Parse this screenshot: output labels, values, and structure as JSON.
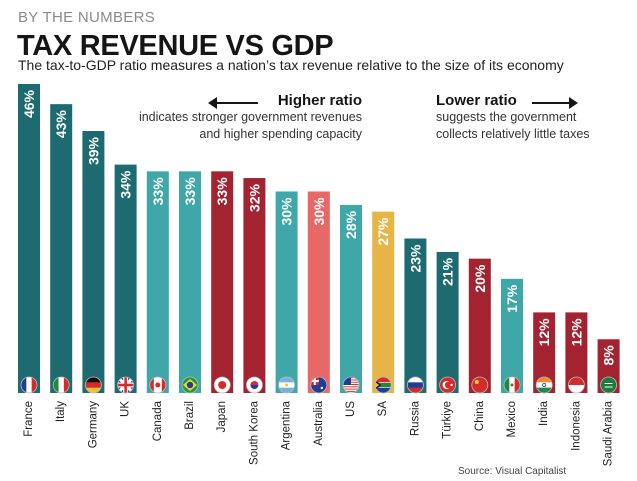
{
  "header": {
    "kicker": "BY THE NUMBERS",
    "title": "TAX REVENUE VS GDP",
    "subtitle": "The tax-to-GDP ratio measures a nation’s tax revenue relative to the size of its economy"
  },
  "notes": {
    "higher": {
      "head": "Higher ratio",
      "line1": "indicates stronger government revenues",
      "line2": "and higher spending capacity"
    },
    "lower": {
      "head": "Lower ratio",
      "line1": "suggests the government",
      "line2": "collects relatively little taxes"
    }
  },
  "source": "Source: Visual Capitalist",
  "colors": {
    "teal": "#1d6a70",
    "light_teal": "#3fa7a7",
    "red": "#a32430",
    "coral": "#e86767",
    "gold": "#e7b547"
  },
  "chart_data": {
    "type": "bar",
    "title": "TAX REVENUE VS GDP",
    "categories": [
      "France",
      "Italy",
      "Germany",
      "UK",
      "Canada",
      "Brazil",
      "Japan",
      "South Korea",
      "Argentina",
      "Australia",
      "US",
      "SA",
      "Russia",
      "Türkiye",
      "China",
      "Mexico",
      "India",
      "Indonesia",
      "Saudi Arabia"
    ],
    "values": [
      46,
      43,
      39,
      34,
      33,
      33,
      33,
      32,
      30,
      30,
      28,
      27,
      23,
      21,
      20,
      17,
      12,
      12,
      8
    ],
    "labels": [
      "46%",
      "43%",
      "39%",
      "34%",
      "33%",
      "33%",
      "33%",
      "32%",
      "30%",
      "30%",
      "28%",
      "27%",
      "23%",
      "21%",
      "20%",
      "17%",
      "12%",
      "12%",
      "8%"
    ],
    "bar_colors": [
      "#1d6a70",
      "#1d6a70",
      "#1d6a70",
      "#1d6a70",
      "#3fa7a7",
      "#3fa7a7",
      "#a32430",
      "#a32430",
      "#3fa7a7",
      "#e86767",
      "#3fa7a7",
      "#e7b547",
      "#1d6a70",
      "#1d6a70",
      "#a32430",
      "#3fa7a7",
      "#a32430",
      "#a32430",
      "#a32430"
    ],
    "flag_icons": [
      "france-flag-icon",
      "italy-flag-icon",
      "germany-flag-icon",
      "uk-flag-icon",
      "canada-flag-icon",
      "brazil-flag-icon",
      "japan-flag-icon",
      "south-korea-flag-icon",
      "argentina-flag-icon",
      "australia-flag-icon",
      "us-flag-icon",
      "south-africa-flag-icon",
      "russia-flag-icon",
      "turkiye-flag-icon",
      "china-flag-icon",
      "mexico-flag-icon",
      "india-flag-icon",
      "indonesia-flag-icon",
      "saudi-arabia-flag-icon"
    ],
    "ylim": [
      0,
      46
    ],
    "xlabel": "",
    "ylabel": "",
    "grid": false,
    "legend": "none"
  }
}
